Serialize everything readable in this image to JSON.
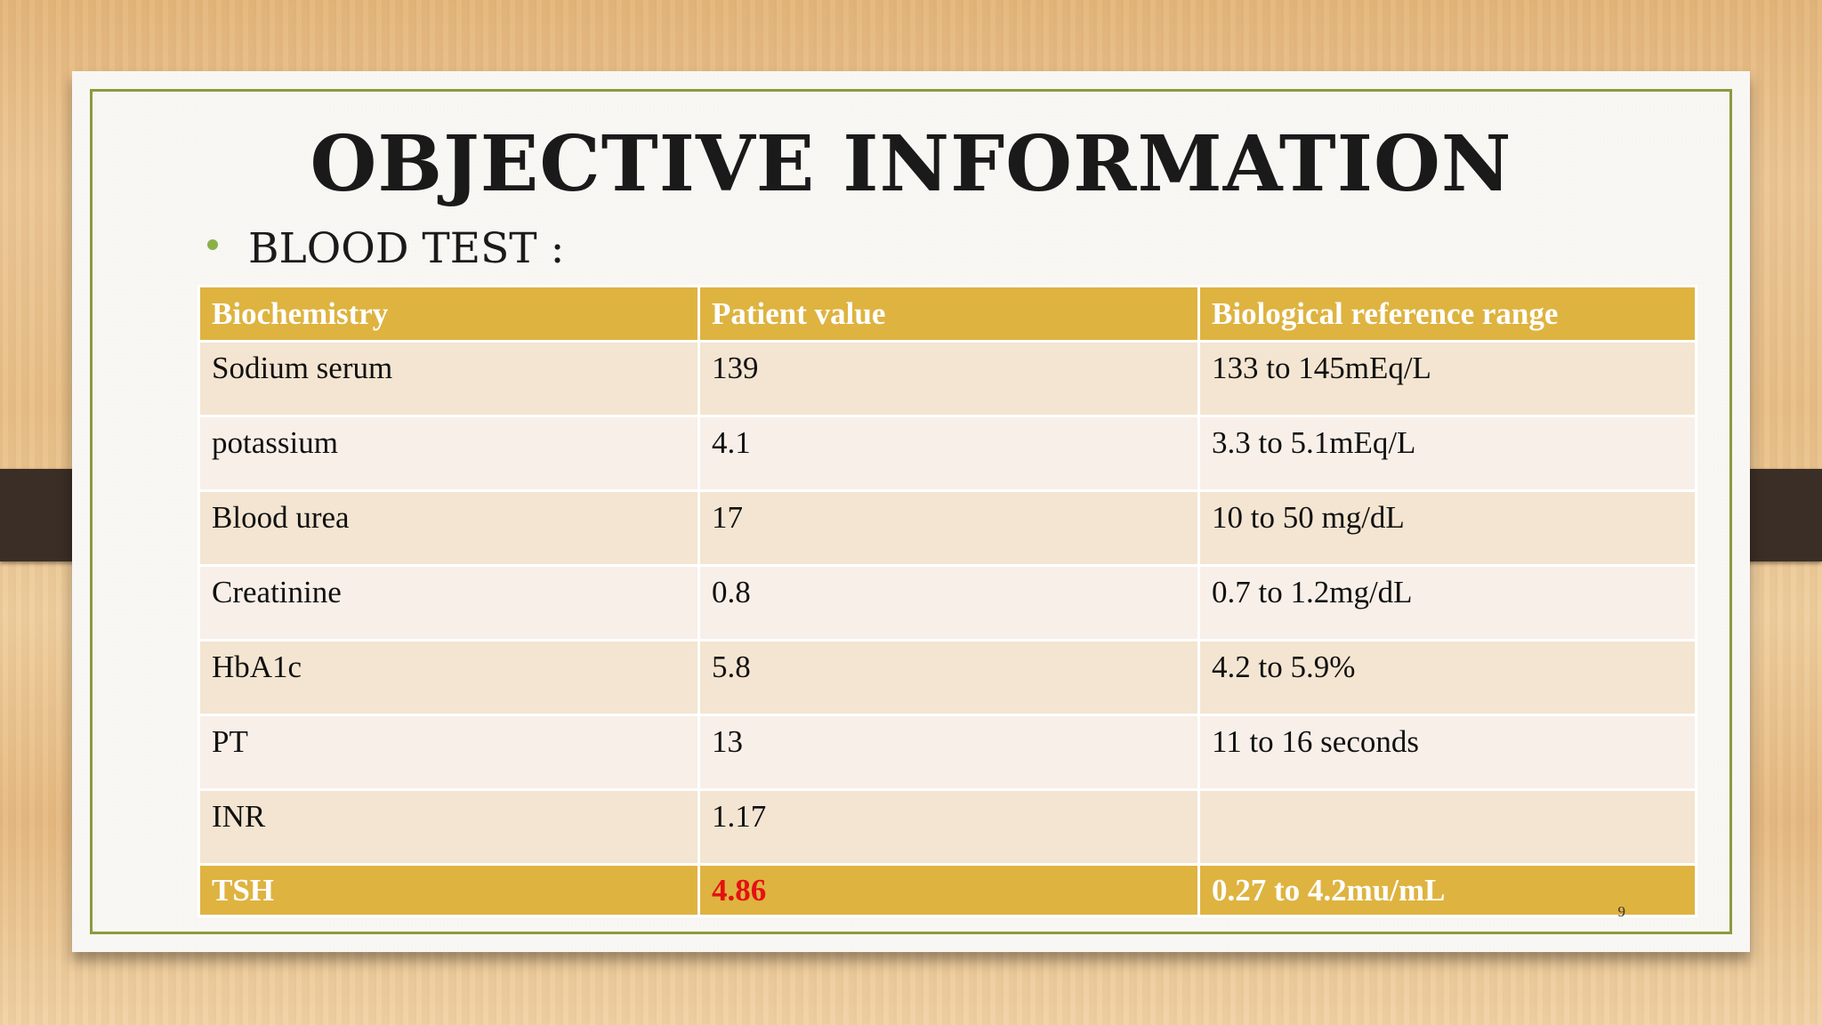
{
  "slide": {
    "title": "OBJECTIVE INFORMATION",
    "bullet": "BLOOD TEST :",
    "page_number": "9"
  },
  "table": {
    "headers": [
      "Biochemistry",
      "Patient value",
      "Biological reference range"
    ],
    "rows": [
      [
        "Sodium serum",
        "139",
        "133 to 145mEq/L"
      ],
      [
        "potassium",
        "4.1",
        "3.3 to 5.1mEq/L"
      ],
      [
        "Blood urea",
        "17",
        "10 to 50 mg/dL"
      ],
      [
        "Creatinine",
        "0.8",
        "0.7 to 1.2mg/dL"
      ],
      [
        "HbA1c",
        "5.8",
        "4.2 to 5.9%"
      ],
      [
        "PT",
        "13",
        "11 to 16 seconds"
      ],
      [
        "INR",
        "1.17",
        ""
      ],
      [
        "TSH",
        "4.86",
        "0.27 to 4.2mu/mL"
      ]
    ]
  },
  "colors": {
    "header_fill": "#deb340",
    "row_fill_a": "#f3e5d1",
    "row_fill_b": "#f8efe8",
    "frame_line": "#8d9a3c",
    "bullet": "#8bb04a",
    "alert_value": "#e31212"
  }
}
